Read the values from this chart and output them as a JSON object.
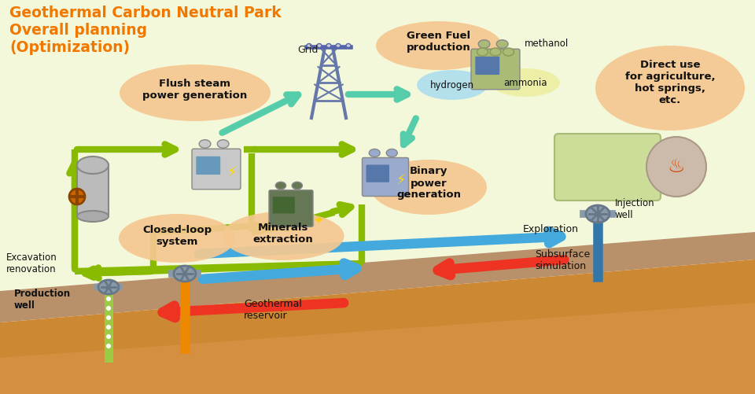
{
  "bg_color": "#fefef0",
  "title_line1": "Geothermal Carbon Neutral Park",
  "title_line2": "Overall planning",
  "title_line3": "(Optimization)",
  "title_color": "#F07800",
  "green_arrow": "#88BB00",
  "teal_arrow": "#55CCAA",
  "blue_arrow": "#44AADD",
  "red_arrow": "#EE3322",
  "bubble_orange": "#F5C890",
  "bubble_green_light": "#DDEE88",
  "bubble_blue_light": "#AADDEE",
  "bubble_yellow_light": "#EEEEA0",
  "direct_use_bg": "#CCDD99",
  "labels": {
    "flush_steam": "Flush steam\npower generation",
    "minerals": "Minerals\nextraction",
    "closed_loop": "Closed-loop\nsystem",
    "green_fuel": "Green Fuel\nproduction",
    "binary": "Binary\npower\ngeneration",
    "direct_use": "Direct use\nfor agriculture,\nhot springs,\netc.",
    "grid": "Grid",
    "hydrogen": "hydrogen",
    "ammonia": "ammonia",
    "methanol": "methanol",
    "injection_well": "Injection\nwell",
    "excavation": "Excavation\nrenovation",
    "production_well": "Production\nwell",
    "geothermal_reservoir": "Geothermal\nreservoir",
    "exploration": "Exploration",
    "subsurface": "Subsurface\nsimulation"
  }
}
